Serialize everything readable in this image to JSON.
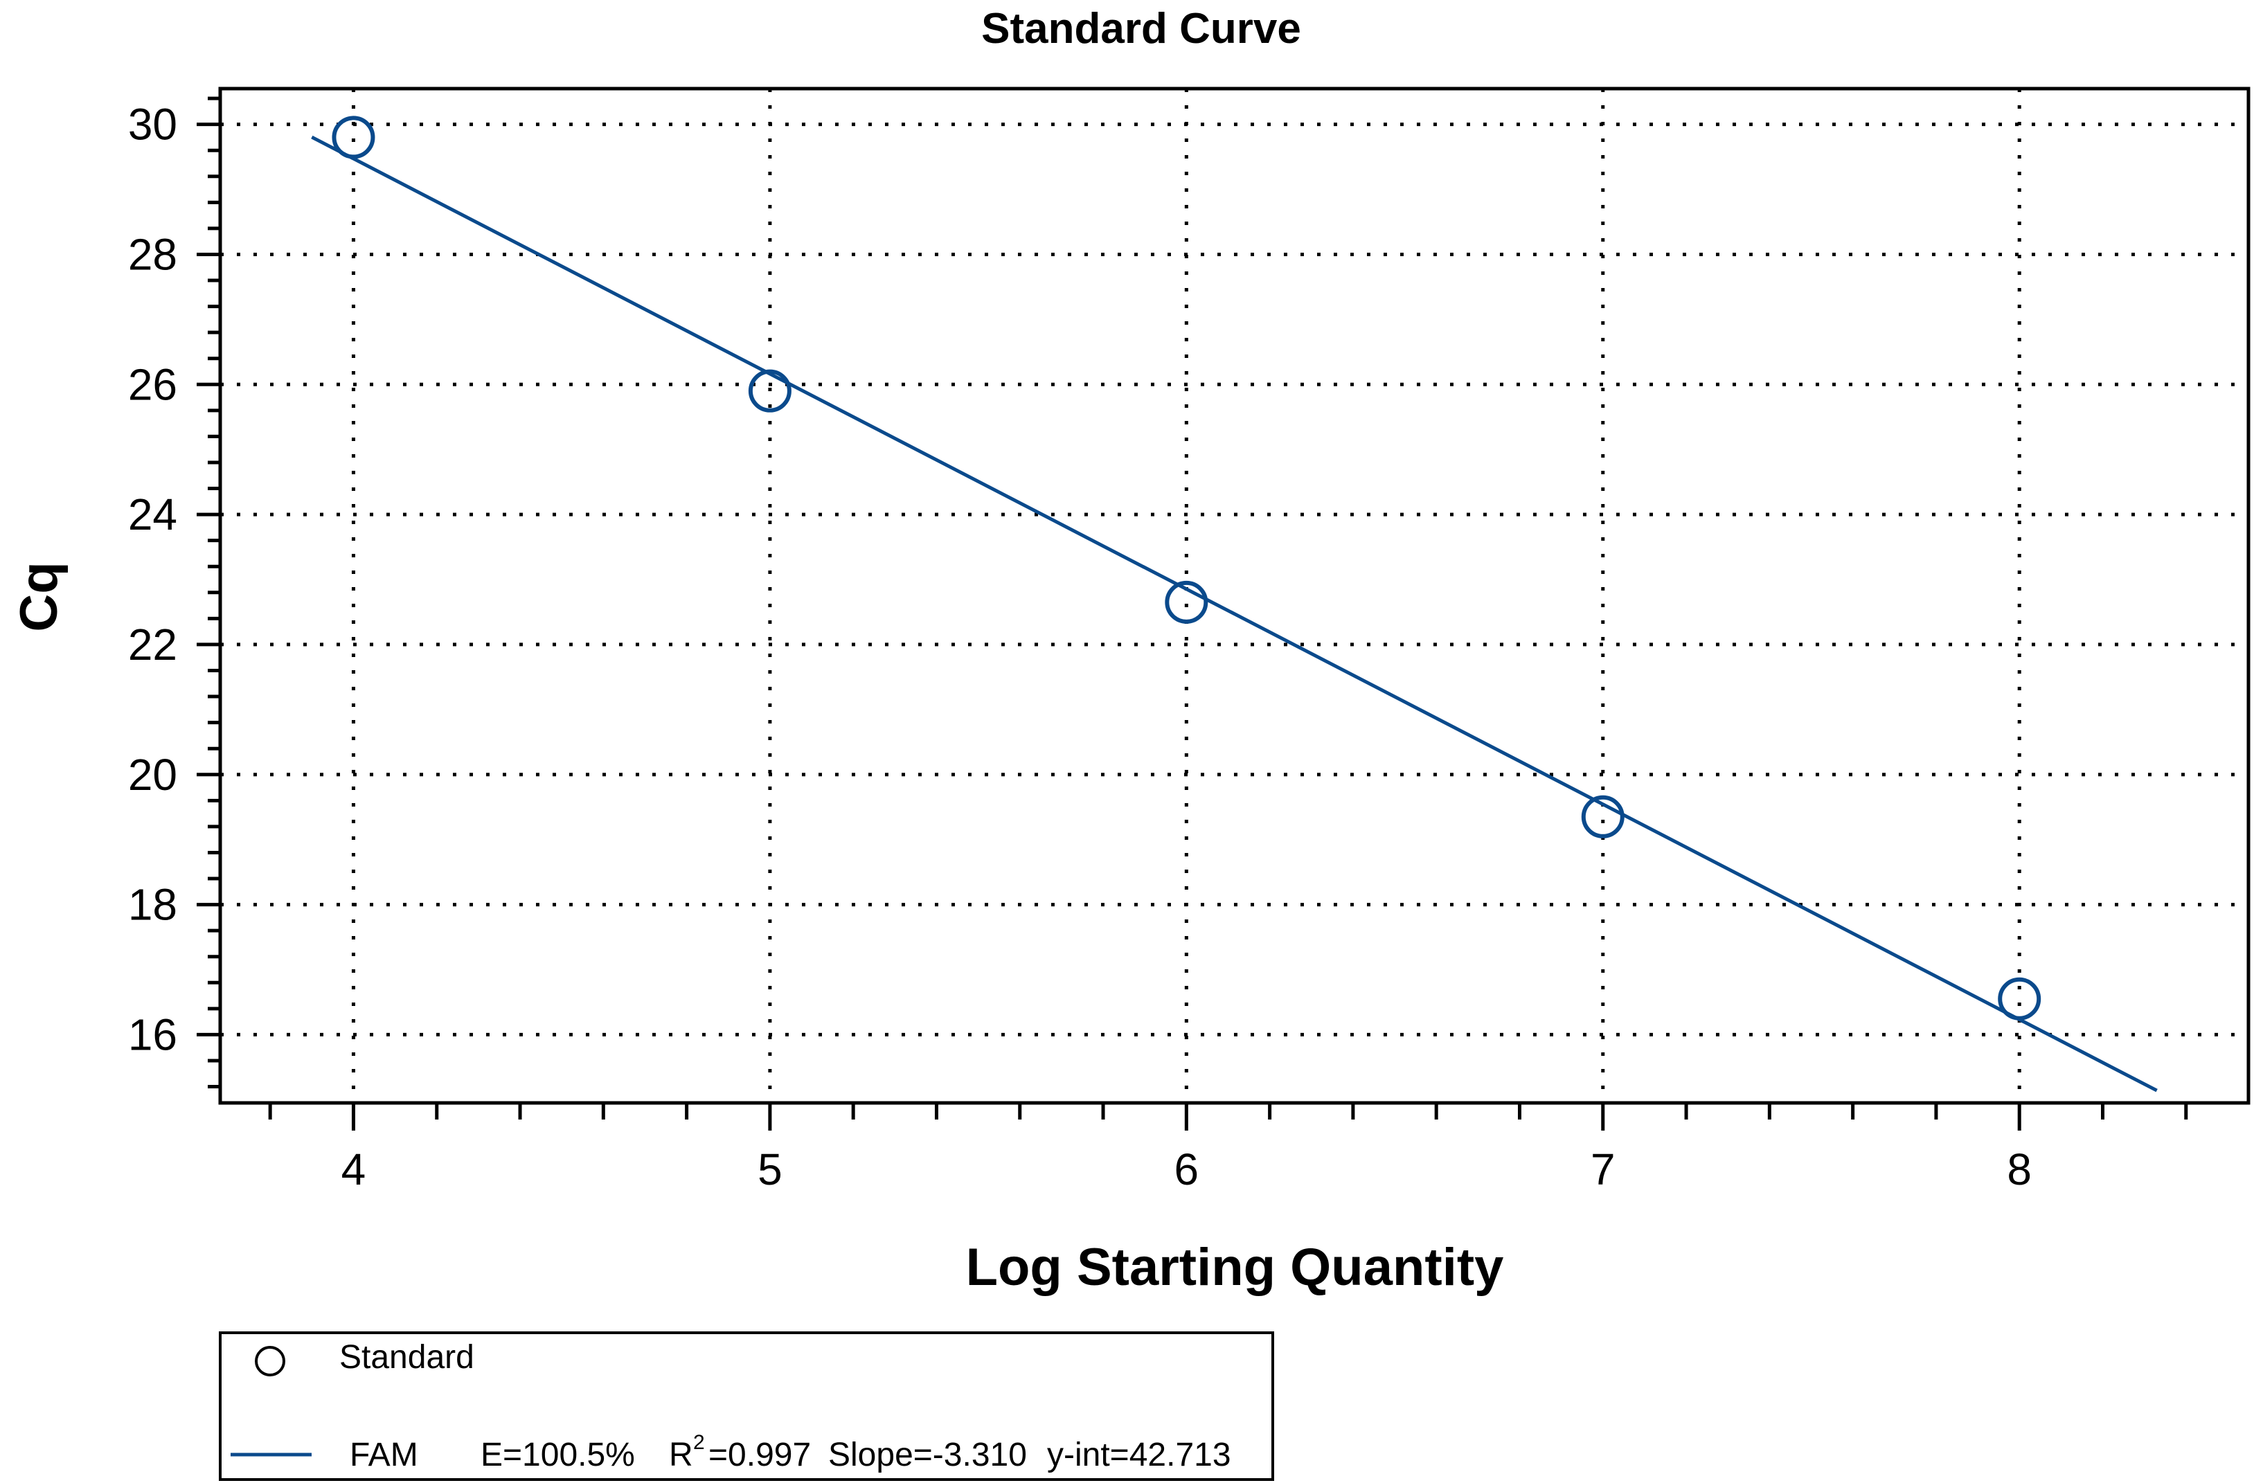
{
  "chart_data": {
    "type": "scatter",
    "title": "Standard Curve",
    "xlabel": "Log Starting Quantity",
    "ylabel": "Cq",
    "xlim": [
      3.68,
      8.55
    ],
    "ylim": [
      14.95,
      30.55
    ],
    "x_ticks": [
      4,
      5,
      6,
      7,
      8
    ],
    "y_ticks": [
      16,
      18,
      20,
      22,
      24,
      26,
      28,
      30
    ],
    "grid": true,
    "series": [
      {
        "name": "Standard",
        "marker": "circle-open",
        "color": "#0a4a8c",
        "x": [
          4,
          5,
          6,
          7,
          8
        ],
        "y": [
          29.8,
          25.9,
          22.65,
          19.35,
          16.55
        ]
      }
    ],
    "fit_line": {
      "name": "FAM",
      "color": "#0a4a8c",
      "slope": -3.31,
      "intercept": 42.713,
      "x_range": [
        3.9,
        8.33
      ]
    },
    "legend": {
      "placement": "bottom-left",
      "entries": [
        {
          "label": "Standard"
        },
        {
          "label": "FAM",
          "efficiency": "E=100.5%",
          "r2_prefix": "R",
          "r2_sup": "2",
          "r2_value": "=0.997",
          "slope": "Slope=-3.310",
          "yint": "y-int=42.713"
        }
      ]
    }
  }
}
